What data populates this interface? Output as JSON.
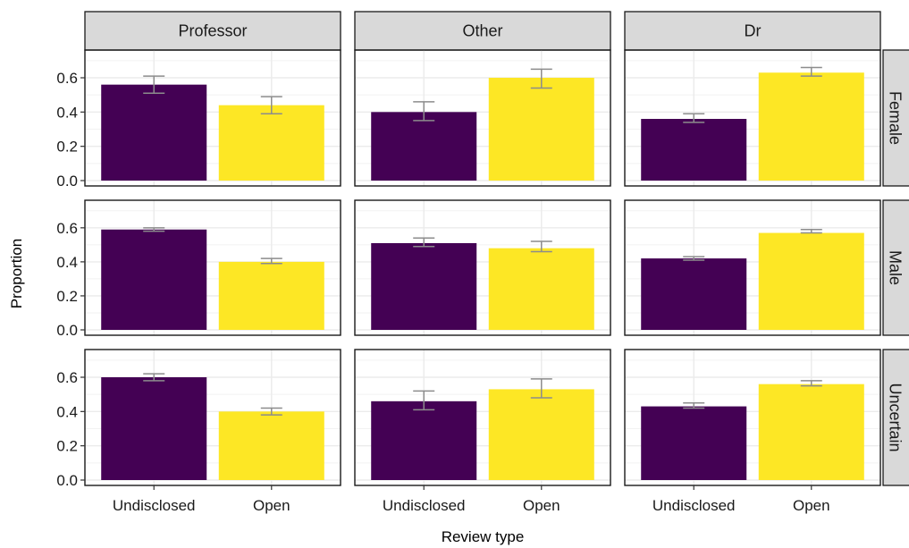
{
  "chart_data": {
    "type": "bar",
    "facet_columns": [
      "Professor",
      "Other",
      "Dr"
    ],
    "facet_rows": [
      "Female",
      "Male",
      "Uncertain"
    ],
    "categories": [
      "Undisclosed",
      "Open"
    ],
    "xlabel": "Review type",
    "ylabel": "Proportion",
    "ylim": [
      0,
      0.72
    ],
    "yticks": [
      0.0,
      0.2,
      0.4,
      0.6
    ],
    "ytick_labels": [
      "0.0",
      "0.2",
      "0.4",
      "0.6"
    ],
    "grid": true,
    "legend": "none",
    "colors": {
      "Undisclosed": "#440154",
      "Open": "#fde725",
      "error_bar": "#8c8c8c",
      "strip_bg": "#d9d9d9",
      "grid": "#ebebeb"
    },
    "panels": [
      {
        "row": "Female",
        "col": "Professor",
        "values": [
          0.56,
          0.44
        ],
        "err_low": [
          0.51,
          0.39
        ],
        "err_high": [
          0.61,
          0.49
        ]
      },
      {
        "row": "Female",
        "col": "Other",
        "values": [
          0.4,
          0.6
        ],
        "err_low": [
          0.35,
          0.54
        ],
        "err_high": [
          0.46,
          0.65
        ]
      },
      {
        "row": "Female",
        "col": "Dr",
        "values": [
          0.36,
          0.63
        ],
        "err_low": [
          0.34,
          0.61
        ],
        "err_high": [
          0.39,
          0.66
        ]
      },
      {
        "row": "Male",
        "col": "Professor",
        "values": [
          0.59,
          0.4
        ],
        "err_low": [
          0.58,
          0.39
        ],
        "err_high": [
          0.6,
          0.42
        ]
      },
      {
        "row": "Male",
        "col": "Other",
        "values": [
          0.51,
          0.48
        ],
        "err_low": [
          0.49,
          0.46
        ],
        "err_high": [
          0.54,
          0.52
        ]
      },
      {
        "row": "Male",
        "col": "Dr",
        "values": [
          0.42,
          0.57
        ],
        "err_low": [
          0.41,
          0.57
        ],
        "err_high": [
          0.43,
          0.59
        ]
      },
      {
        "row": "Uncertain",
        "col": "Professor",
        "values": [
          0.6,
          0.4
        ],
        "err_low": [
          0.58,
          0.38
        ],
        "err_high": [
          0.62,
          0.42
        ]
      },
      {
        "row": "Uncertain",
        "col": "Other",
        "values": [
          0.46,
          0.53
        ],
        "err_low": [
          0.41,
          0.48
        ],
        "err_high": [
          0.52,
          0.59
        ]
      },
      {
        "row": "Uncertain",
        "col": "Dr",
        "values": [
          0.43,
          0.56
        ],
        "err_low": [
          0.42,
          0.55
        ],
        "err_high": [
          0.45,
          0.58
        ]
      }
    ]
  }
}
